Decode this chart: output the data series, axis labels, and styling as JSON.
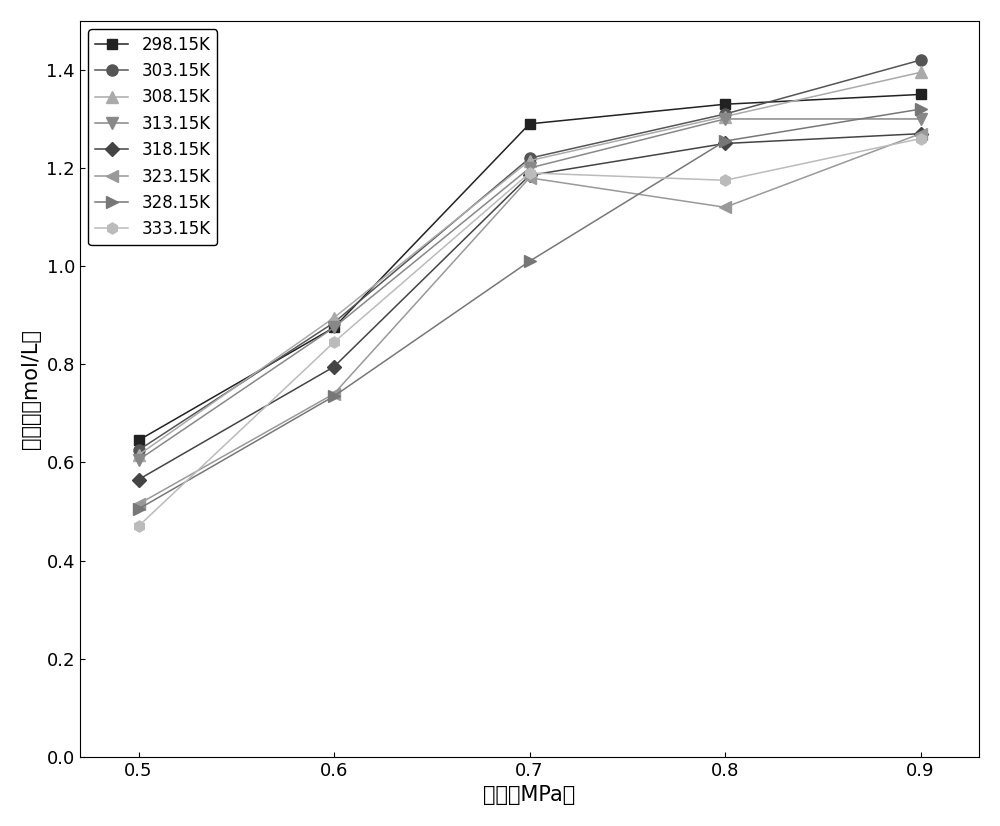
{
  "x": [
    0.5,
    0.6,
    0.7,
    0.8,
    0.9
  ],
  "series": [
    {
      "label": "298.15K",
      "values": [
        0.645,
        0.875,
        1.29,
        1.33,
        1.35
      ],
      "color": "#222222",
      "marker": "s",
      "markersize": 7,
      "markerfacecolor": "#222222"
    },
    {
      "label": "303.15K",
      "values": [
        0.625,
        0.885,
        1.22,
        1.31,
        1.42
      ],
      "color": "#555555",
      "marker": "o",
      "markersize": 8,
      "markerfacecolor": "#555555"
    },
    {
      "label": "308.15K",
      "values": [
        0.615,
        0.895,
        1.215,
        1.305,
        1.395
      ],
      "color": "#aaaaaa",
      "marker": "^",
      "markersize": 8,
      "markerfacecolor": "#aaaaaa"
    },
    {
      "label": "313.15K",
      "values": [
        0.605,
        0.875,
        1.2,
        1.3,
        1.3
      ],
      "color": "#888888",
      "marker": "v",
      "markersize": 8,
      "markerfacecolor": "#888888"
    },
    {
      "label": "318.15K",
      "values": [
        0.565,
        0.795,
        1.185,
        1.25,
        1.27
      ],
      "color": "#444444",
      "marker": "D",
      "markersize": 7,
      "markerfacecolor": "#444444"
    },
    {
      "label": "323.15K",
      "values": [
        0.515,
        0.74,
        1.18,
        1.12,
        1.27
      ],
      "color": "#999999",
      "marker": "<",
      "markersize": 8,
      "markerfacecolor": "#999999"
    },
    {
      "label": "328.15K",
      "values": [
        0.505,
        0.735,
        1.01,
        1.255,
        1.32
      ],
      "color": "#777777",
      "marker": ">",
      "markersize": 8,
      "markerfacecolor": "#777777"
    },
    {
      "label": "333.15K",
      "values": [
        0.47,
        0.845,
        1.19,
        1.175,
        1.26
      ],
      "color": "#bbbbbb",
      "marker": "h",
      "markersize": 8,
      "markerfacecolor": "#bbbbbb"
    }
  ],
  "xlabel": "分压（MPa）",
  "ylabel": "吸收量（mol/L）",
  "xlim": [
    0.47,
    0.93
  ],
  "ylim": [
    0.0,
    1.5
  ],
  "xticks": [
    0.5,
    0.6,
    0.7,
    0.8,
    0.9
  ],
  "yticks": [
    0.0,
    0.2,
    0.4,
    0.6,
    0.8,
    1.0,
    1.2,
    1.4
  ],
  "figsize": [
    10.0,
    8.26
  ],
  "dpi": 100,
  "linewidth": 1.1,
  "legend_loc": "upper left",
  "legend_fontsize": 12,
  "axis_fontsize": 15,
  "tick_fontsize": 13
}
